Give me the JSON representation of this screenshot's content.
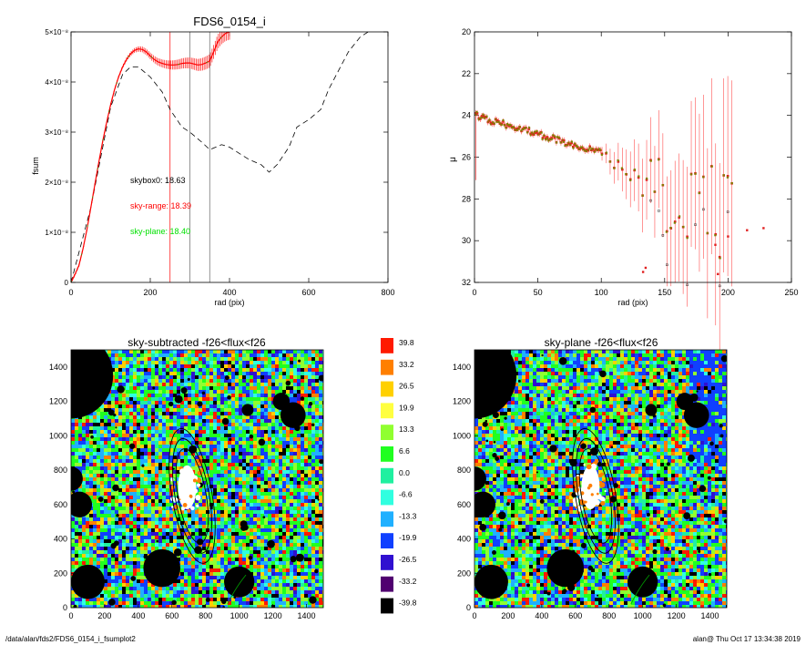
{
  "footer": {
    "path": "/data/alan/fds2/FDS6_0154_i_fsumplot2",
    "stamp": "alan@  Thu Oct 17 13:34:38 2019"
  },
  "chart_data": [
    {
      "type": "line",
      "title": "FDS6_0154_i",
      "xlabel": "rad (pix)",
      "ylabel": "fsum",
      "xlim": [
        0,
        800
      ],
      "ylim": [
        0,
        5e-08
      ],
      "xticks": [
        "0",
        "200",
        "400",
        "600",
        "800"
      ],
      "yticks": [
        "0",
        "1×10⁻⁸",
        "2×10⁻⁸",
        "3×10⁻⁸",
        "4×10⁻⁸",
        "5×10⁻⁸"
      ],
      "series": [
        {
          "style": "red-with-errorbars",
          "x": [
            0,
            10,
            20,
            30,
            40,
            50,
            60,
            70,
            80,
            90,
            100,
            110,
            120,
            130,
            140,
            150,
            160,
            170,
            180,
            190,
            200,
            210,
            220,
            230,
            240,
            250,
            260,
            270,
            280,
            290,
            300,
            310,
            320,
            330,
            340,
            350,
            360,
            370,
            380,
            390,
            400
          ],
          "y": [
            0,
            1.6e-09,
            3.4e-09,
            6.6e-09,
            1.05e-08,
            1.5e-08,
            1.95e-08,
            2.4e-08,
            2.82e-08,
            3.2e-08,
            3.55e-08,
            3.85e-08,
            4.1e-08,
            4.3e-08,
            4.45e-08,
            4.56e-08,
            4.63e-08,
            4.66e-08,
            4.65e-08,
            4.6e-08,
            4.52e-08,
            4.45e-08,
            4.4e-08,
            4.37e-08,
            4.35e-08,
            4.34e-08,
            4.34e-08,
            4.35e-08,
            4.37e-08,
            4.38e-08,
            4.38e-08,
            4.36e-08,
            4.34e-08,
            4.35e-08,
            4.38e-08,
            4.42e-08,
            4.6e-08,
            4.8e-08,
            4.9e-08,
            4.97e-08,
            5e-08
          ]
        },
        {
          "style": "dashed-black",
          "x": [
            0,
            50,
            100,
            130,
            150,
            170,
            200,
            230,
            250,
            280,
            300,
            330,
            350,
            380,
            400,
            430,
            450,
            480,
            500,
            520,
            550,
            570,
            600,
            630,
            650,
            680,
            700,
            730,
            750
          ],
          "y": [
            0,
            1.5e-08,
            3.5e-08,
            4.15e-08,
            4.3e-08,
            4.3e-08,
            4.1e-08,
            3.8e-08,
            3.45e-08,
            3.1e-08,
            3e-08,
            2.8e-08,
            2.65e-08,
            2.75e-08,
            2.7e-08,
            2.55e-08,
            2.45e-08,
            2.35e-08,
            2.2e-08,
            2.35e-08,
            2.7e-08,
            3.1e-08,
            3.25e-08,
            3.45e-08,
            3.85e-08,
            4.3e-08,
            4.6e-08,
            4.9e-08,
            5e-08
          ]
        }
      ],
      "vlines": [
        250,
        300,
        350
      ],
      "annotations": [
        {
          "text": "skybox0: 18.63",
          "color": "#000000"
        },
        {
          "text": "sky-range: 18.39",
          "color": "#ff0000"
        },
        {
          "text": "sky-plane: 18.40",
          "color": "#00e000"
        }
      ]
    },
    {
      "type": "scatter",
      "xlabel": "rad (pix)",
      "ylabel": "μ",
      "xlim": [
        0,
        250
      ],
      "ylim": [
        32,
        20
      ],
      "xticks": [
        "0",
        "50",
        "100",
        "150",
        "200",
        "250"
      ],
      "yticks": [
        "20",
        "22",
        "24",
        "26",
        "28",
        "30",
        "32"
      ]
    },
    {
      "type": "heatmap",
      "title": "sky-subtracted -f26<flux<f26",
      "xlim": [
        0,
        1500
      ],
      "ylim": [
        0,
        1500
      ],
      "xticks": [
        "0",
        "200",
        "400",
        "600",
        "800",
        "1000",
        "1200",
        "1400"
      ],
      "yticks": [
        "0",
        "200",
        "400",
        "600",
        "800",
        "1000",
        "1200",
        "1400"
      ],
      "masked_circles": [
        [
          0,
          1350,
          250
        ],
        [
          0,
          750,
          70
        ],
        [
          50,
          600,
          75
        ],
        [
          100,
          150,
          100
        ],
        [
          540,
          230,
          110
        ],
        [
          1000,
          150,
          90
        ],
        [
          1320,
          1120,
          75
        ],
        [
          1250,
          1200,
          50
        ],
        [
          1050,
          1150,
          35
        ]
      ]
    },
    {
      "type": "heatmap",
      "title": "sky-plane -f26<flux<f26",
      "xlim": [
        0,
        1500
      ],
      "ylim": [
        0,
        1500
      ],
      "xticks": [
        "0",
        "200",
        "400",
        "600",
        "800",
        "1000",
        "1200",
        "1400"
      ],
      "yticks": [
        "0",
        "200",
        "400",
        "600",
        "800",
        "1000",
        "1200",
        "1400"
      ],
      "masked_circles": [
        [
          0,
          1350,
          250
        ],
        [
          0,
          750,
          70
        ],
        [
          50,
          600,
          75
        ],
        [
          100,
          150,
          100
        ],
        [
          540,
          230,
          110
        ],
        [
          1000,
          150,
          90
        ],
        [
          1320,
          1120,
          75
        ],
        [
          1250,
          1200,
          50
        ],
        [
          1050,
          1150,
          35
        ]
      ]
    },
    {
      "type": "colorbar",
      "labels": [
        "39.8",
        "33.2",
        "26.5",
        "19.9",
        "13.3",
        "6.6",
        "0.0",
        "-6.6",
        "-13.3",
        "-19.9",
        "-26.5",
        "-33.2",
        "-39.8"
      ],
      "colors": [
        "#ff1a00",
        "#ff7f00",
        "#ffd000",
        "#ffff40",
        "#90ff30",
        "#20ff20",
        "#20f0a0",
        "#30ffe0",
        "#20b0ff",
        "#1040ff",
        "#3010d0",
        "#500070",
        "#000000"
      ]
    }
  ]
}
